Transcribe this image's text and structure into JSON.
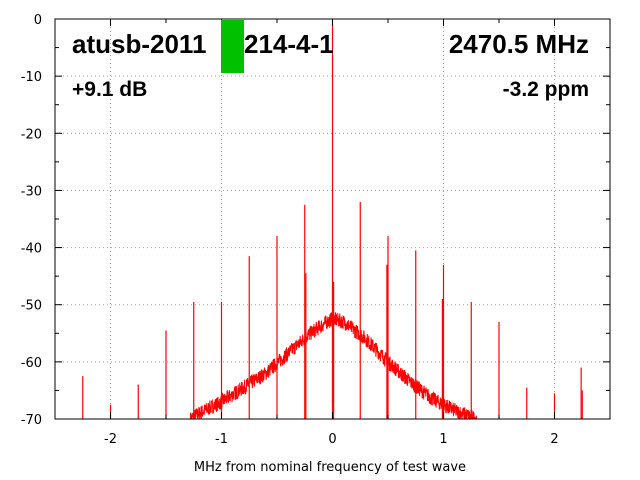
{
  "chart_data": {
    "type": "line",
    "xlabel": "MHz from nominal frequency of test wave",
    "ylabel": "",
    "xlim": [
      -2.5,
      2.5
    ],
    "ylim": [
      -70,
      0
    ],
    "x_ticks": [
      -2,
      -1,
      0,
      1,
      2
    ],
    "y_ticks": [
      0,
      -10,
      -20,
      -30,
      -40,
      -50,
      -60,
      -70
    ],
    "x_tick_labels": [
      "-2",
      "-1",
      "0",
      "1",
      "2"
    ],
    "y_tick_labels": [
      "0",
      "-10",
      "-20",
      "-30",
      "-40",
      "-50",
      "-60",
      "-70"
    ],
    "grid": true,
    "series_color": "#ff0000",
    "marker_color": "#00c000",
    "annotations": {
      "device": "atusb-2011",
      "device_suffix": "214-4-1",
      "frequency": "2470.5 MHz",
      "gain": "+9.1 dB",
      "offset": "-3.2 ppm"
    },
    "noise_floor_envelope": [
      {
        "x": -1.28,
        "y": -70
      },
      {
        "x": -1.2,
        "y": -69
      },
      {
        "x": -1.0,
        "y": -67
      },
      {
        "x": -0.8,
        "y": -64.5
      },
      {
        "x": -0.6,
        "y": -62
      },
      {
        "x": -0.4,
        "y": -58.5
      },
      {
        "x": -0.2,
        "y": -55
      },
      {
        "x": -0.05,
        "y": -53
      },
      {
        "x": 0.0,
        "y": -52.5
      },
      {
        "x": 0.1,
        "y": -53
      },
      {
        "x": 0.3,
        "y": -56
      },
      {
        "x": 0.5,
        "y": -60
      },
      {
        "x": 0.7,
        "y": -63.5
      },
      {
        "x": 0.9,
        "y": -66.5
      },
      {
        "x": 1.1,
        "y": -68.5
      },
      {
        "x": 1.3,
        "y": -70
      }
    ],
    "spurs": [
      {
        "x": -2.25,
        "y": -62.5
      },
      {
        "x": -2.0,
        "y": -67.5
      },
      {
        "x": -1.75,
        "y": -64
      },
      {
        "x": -1.5,
        "y": -54.5
      },
      {
        "x": -1.25,
        "y": -49.5
      },
      {
        "x": -1.0,
        "y": -49.5
      },
      {
        "x": -0.75,
        "y": -41.5
      },
      {
        "x": -0.5,
        "y": -38
      },
      {
        "x": -0.25,
        "y": -32.5
      },
      {
        "x": -0.24,
        "y": -44.5
      },
      {
        "x": 0.0,
        "y": 0
      },
      {
        "x": 0.01,
        "y": -46
      },
      {
        "x": 0.25,
        "y": -32
      },
      {
        "x": 0.49,
        "y": -43
      },
      {
        "x": 0.5,
        "y": -38
      },
      {
        "x": 0.75,
        "y": -40.5
      },
      {
        "x": 0.99,
        "y": -49
      },
      {
        "x": 1.0,
        "y": -43
      },
      {
        "x": 1.25,
        "y": -49.5
      },
      {
        "x": 1.5,
        "y": -53
      },
      {
        "x": 1.75,
        "y": -64.5
      },
      {
        "x": 2.0,
        "y": -65.5
      },
      {
        "x": 2.24,
        "y": -61
      },
      {
        "x": 2.25,
        "y": -65
      }
    ]
  }
}
